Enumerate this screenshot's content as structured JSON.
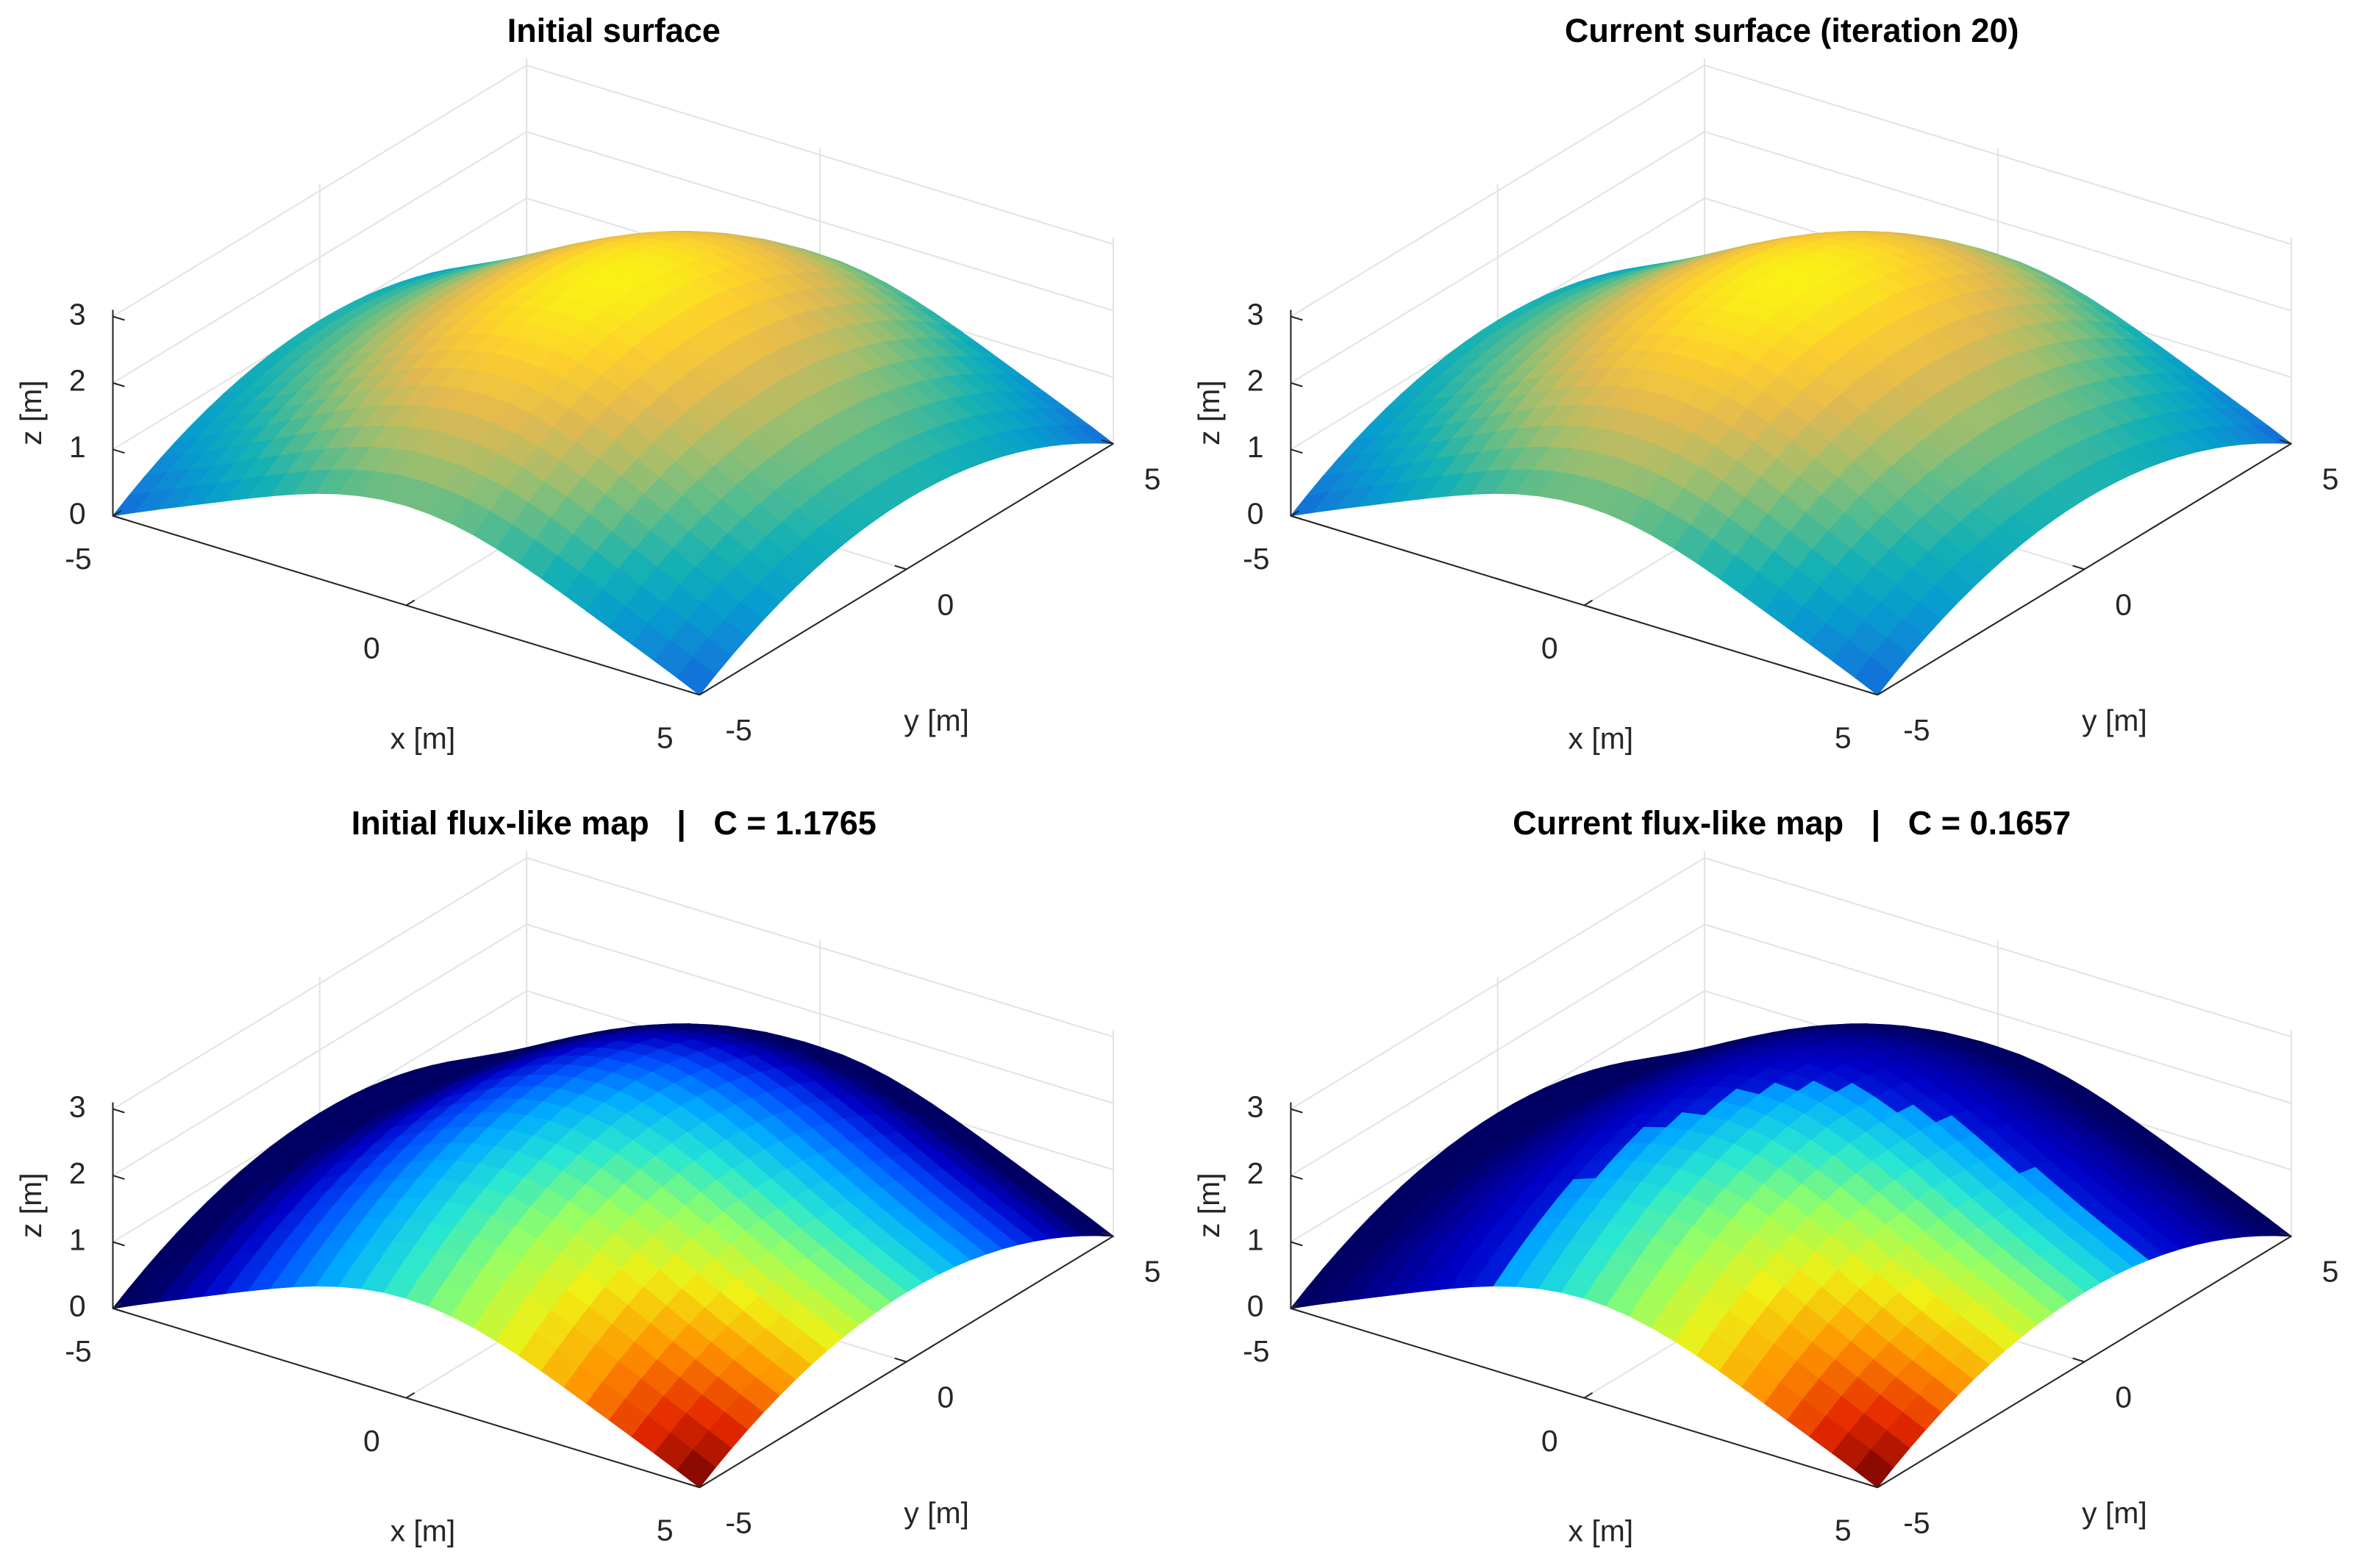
{
  "chart_data": [
    {
      "type": "surface3d",
      "title": "Initial surface",
      "xlabel": "x [m]",
      "ylabel": "y [m]",
      "zlabel": "z [m]",
      "xlim": [
        -5,
        5
      ],
      "ylim": [
        -5,
        5
      ],
      "zlim": [
        0,
        3.1
      ],
      "xticks": [
        -5,
        0,
        5
      ],
      "yticks": [
        -5,
        0,
        5
      ],
      "zticks": [
        0,
        1,
        2,
        3
      ],
      "colormap": "parula",
      "grid": true
    },
    {
      "type": "surface3d",
      "title": "Current surface (iteration 20)",
      "xlabel": "x [m]",
      "ylabel": "y [m]",
      "zlabel": "z [m]",
      "xlim": [
        -5,
        5
      ],
      "ylim": [
        -5,
        5
      ],
      "zlim": [
        0,
        3.1
      ],
      "xticks": [
        -5,
        0,
        5
      ],
      "yticks": [
        -5,
        0,
        5
      ],
      "zticks": [
        0,
        1,
        2,
        3
      ],
      "colormap": "parula",
      "grid": true
    },
    {
      "type": "surface3d",
      "title": "Initial flux-like map   |   C = 1.1765",
      "xlabel": "x [m]",
      "ylabel": "y [m]",
      "zlabel": "z [m]",
      "xlim": [
        -5,
        5
      ],
      "ylim": [
        -5,
        5
      ],
      "zlim": [
        0,
        3.1
      ],
      "xticks": [
        -5,
        0,
        5
      ],
      "yticks": [
        -5,
        0,
        5
      ],
      "zticks": [
        0,
        1,
        2,
        3
      ],
      "colormap": "jet",
      "grid": true
    },
    {
      "type": "surface3d",
      "title": "Current flux-like map   |   C = 0.1657",
      "xlabel": "x [m]",
      "ylabel": "y [m]",
      "zlabel": "z [m]",
      "xlim": [
        -5,
        5
      ],
      "ylim": [
        -5,
        5
      ],
      "zlim": [
        0,
        3.1
      ],
      "xticks": [
        -5,
        0,
        5
      ],
      "yticks": [
        -5,
        0,
        5
      ],
      "zticks": [
        0,
        1,
        2,
        3
      ],
      "colormap": "jet",
      "grid": true
    }
  ]
}
